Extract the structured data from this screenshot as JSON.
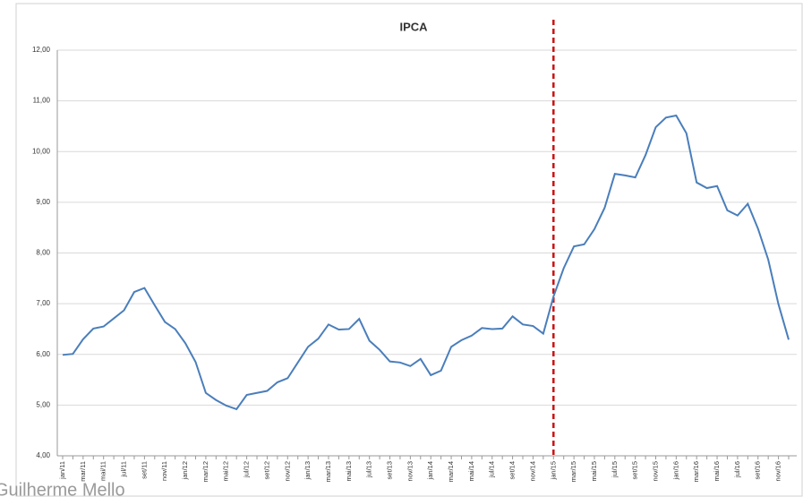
{
  "chart_data": {
    "type": "line",
    "title": "IPCA",
    "categories": [
      "jan/11",
      null,
      "mar/11",
      null,
      "mai/11",
      null,
      "jul/11",
      null,
      "set/11",
      null,
      "nov/11",
      null,
      "jan/12",
      null,
      "mar/12",
      null,
      "mai/12",
      null,
      "jul/12",
      null,
      "set/12",
      null,
      "nov/12",
      null,
      "jan/13",
      null,
      "mar/13",
      null,
      "mai/13",
      null,
      "jul/13",
      null,
      "set/13",
      null,
      "nov/13",
      null,
      "jan/14",
      null,
      "mar/14",
      null,
      "mai/14",
      null,
      "jul/14",
      null,
      "set/14",
      null,
      "nov/14",
      null,
      "jan/15",
      null,
      "mar/15",
      null,
      "mai/15",
      null,
      "jul/15",
      null,
      "set/15",
      null,
      "nov/15",
      null,
      "jan/16",
      null,
      "mar/16",
      null,
      "mai/16",
      null,
      "jul/16",
      null,
      "set/16",
      null,
      "nov/16",
      null
    ],
    "series": [
      {
        "name": "IPCA",
        "color": "#4a7ebb",
        "values": [
          5.99,
          6.01,
          6.3,
          6.51,
          6.55,
          6.71,
          6.87,
          7.23,
          7.31,
          6.97,
          6.64,
          6.5,
          6.22,
          5.85,
          5.24,
          5.1,
          4.99,
          4.92,
          5.2,
          5.24,
          5.28,
          5.45,
          5.53,
          5.84,
          6.15,
          6.31,
          6.59,
          6.49,
          6.5,
          6.7,
          6.27,
          6.09,
          5.86,
          5.84,
          5.77,
          5.91,
          5.59,
          5.68,
          6.15,
          6.28,
          6.37,
          6.52,
          6.5,
          6.51,
          6.75,
          6.59,
          6.56,
          6.41,
          7.14,
          7.7,
          8.13,
          8.17,
          8.47,
          8.89,
          9.56,
          9.53,
          9.49,
          9.93,
          10.48,
          10.67,
          10.71,
          10.36,
          9.39,
          9.28,
          9.32,
          8.84,
          8.74,
          8.97,
          8.48,
          7.87,
          6.99,
          6.29
        ]
      }
    ],
    "ylim": [
      4,
      12
    ],
    "yticks": [
      {
        "value": 4,
        "label": "4,00"
      },
      {
        "value": 5,
        "label": "5,00"
      },
      {
        "value": 6,
        "label": "6,00"
      },
      {
        "value": 7,
        "label": "7,00"
      },
      {
        "value": 8,
        "label": "8,00"
      },
      {
        "value": 9,
        "label": "9,00"
      },
      {
        "value": 10,
        "label": "10,00"
      },
      {
        "value": 11,
        "label": "11,00"
      },
      {
        "value": 12,
        "label": "12,00"
      }
    ],
    "grid": true,
    "vline": {
      "x": "jan/15",
      "color": "#cc1111",
      "dashed": true
    },
    "watermark": "Guilherme Mello"
  }
}
